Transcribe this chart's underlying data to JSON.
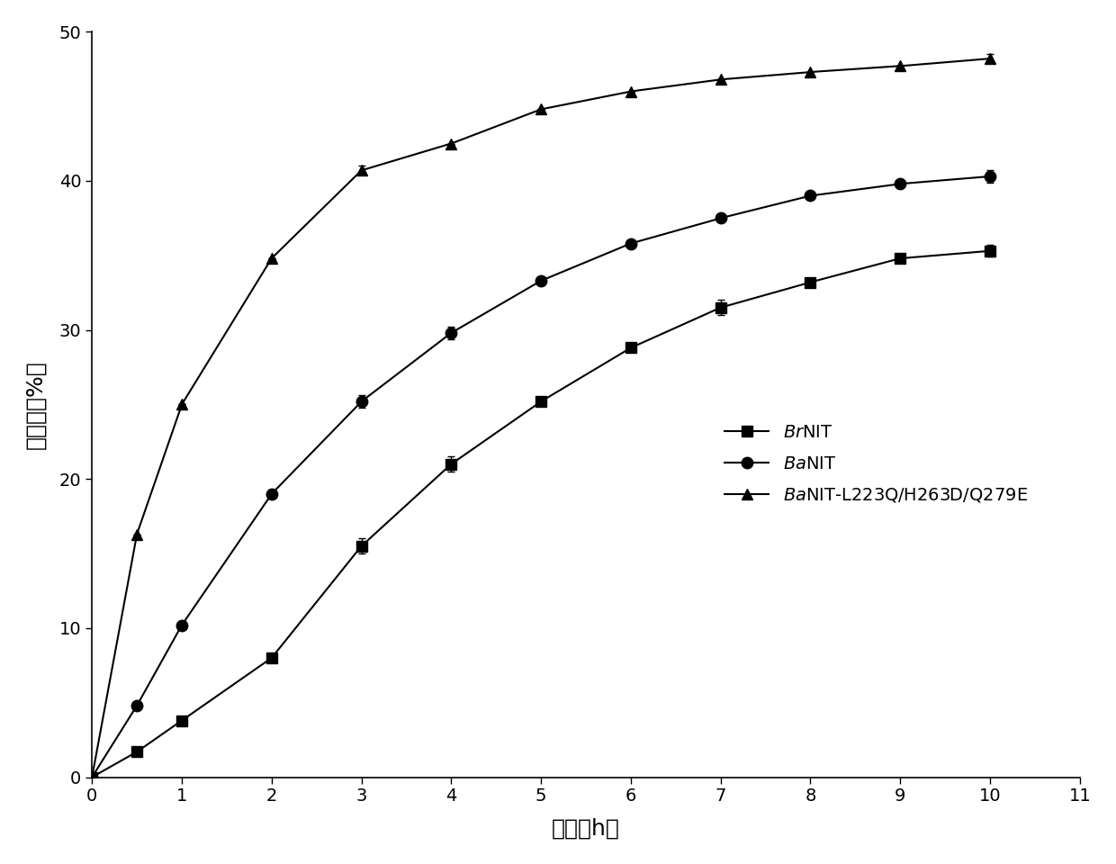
{
  "title": "",
  "xlabel": "时间（h）",
  "ylabel": "转化率（%）",
  "xlim": [
    0,
    11
  ],
  "ylim": [
    0,
    50
  ],
  "xticks": [
    0,
    1,
    2,
    3,
    4,
    5,
    6,
    7,
    8,
    9,
    10,
    11
  ],
  "yticks": [
    0,
    10,
    20,
    30,
    40,
    50
  ],
  "series": [
    {
      "label": "$\\it{Br}$NIT",
      "x": [
        0,
        0.5,
        1,
        2,
        3,
        4,
        5,
        6,
        7,
        8,
        9,
        10
      ],
      "y": [
        0,
        1.7,
        3.8,
        8.0,
        15.5,
        21.0,
        25.2,
        28.8,
        31.5,
        33.2,
        34.8,
        35.3
      ],
      "yerr": [
        0,
        0.0,
        0.0,
        0.0,
        0.5,
        0.5,
        0.0,
        0.0,
        0.5,
        0.0,
        0.0,
        0.4
      ],
      "marker": "s",
      "color": "#000000"
    },
    {
      "label": "$\\it{Ba}$NIT",
      "x": [
        0,
        0.5,
        1,
        2,
        3,
        4,
        5,
        6,
        7,
        8,
        9,
        10
      ],
      "y": [
        0,
        4.8,
        10.2,
        19.0,
        25.2,
        29.8,
        33.3,
        35.8,
        37.5,
        39.0,
        39.8,
        40.3
      ],
      "yerr": [
        0,
        0.0,
        0.0,
        0.3,
        0.4,
        0.4,
        0.0,
        0.0,
        0.0,
        0.0,
        0.0,
        0.4
      ],
      "marker": "o",
      "color": "#000000"
    },
    {
      "label": "$\\it{Ba}$NIT-L223Q/H263D/Q279E",
      "x": [
        0,
        0.5,
        1,
        2,
        3,
        4,
        5,
        6,
        7,
        8,
        9,
        10
      ],
      "y": [
        0,
        16.3,
        25.0,
        34.8,
        40.7,
        42.5,
        44.8,
        46.0,
        46.8,
        47.3,
        47.7,
        48.2
      ],
      "yerr": [
        0,
        0.0,
        0.0,
        0.0,
        0.3,
        0.0,
        0.0,
        0.0,
        0.0,
        0.0,
        0.0,
        0.3
      ],
      "marker": "^",
      "color": "#000000"
    }
  ],
  "background_color": "#ffffff",
  "marker_size": 9,
  "linewidth": 1.5,
  "capsize": 3,
  "font_size_axis_label": 18,
  "font_size_tick": 14,
  "font_size_legend": 14
}
